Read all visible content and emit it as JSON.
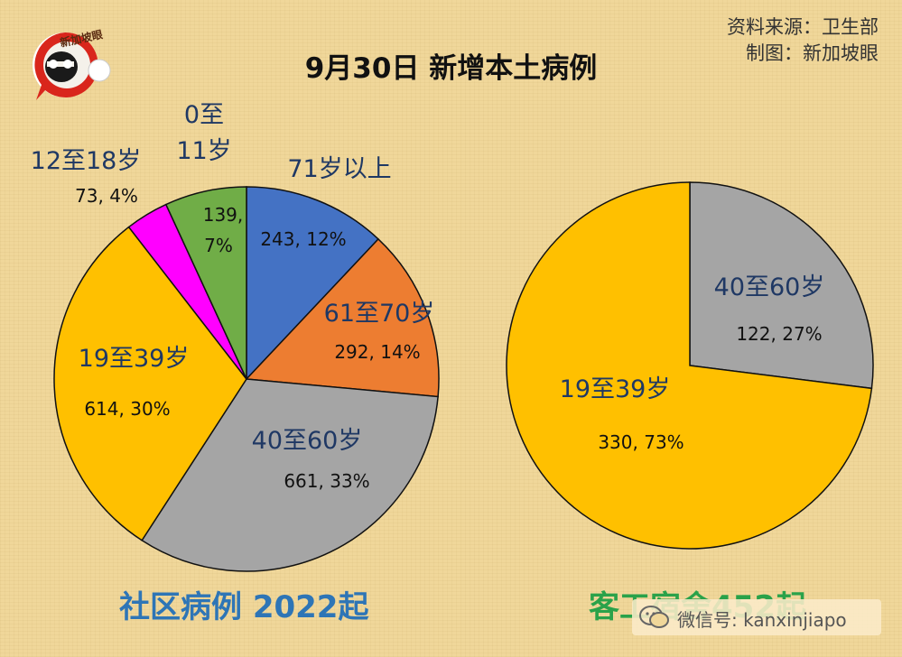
{
  "header": {
    "title": "9月30日 新增本土病例",
    "source_line1": "资料来源：卫生部",
    "source_line2": "制图：新加坡眼",
    "logo_text": "新加坡眼"
  },
  "footer": {
    "left_label": "社区病例 2022起",
    "right_label": "客工宿舍452起"
  },
  "watermark": {
    "text": "微信号: kanxinjiapo"
  },
  "colors": {
    "blue": "#4472c4",
    "orange": "#ed7d31",
    "gray": "#a5a5a5",
    "gold": "#ffc000",
    "magenta": "#ff00ff",
    "green": "#70ad47",
    "footer_left": "#2e75b6",
    "footer_right": "#2aa24a"
  },
  "chart_data": [
    {
      "type": "pie",
      "title": "社区病例 2022起",
      "slices": [
        {
          "category": "71岁以上",
          "value": 243,
          "percent": "12%",
          "label": "243, 12%",
          "color": "#4472c4"
        },
        {
          "category": "61至70岁",
          "value": 292,
          "percent": "14%",
          "label": "292, 14%",
          "color": "#ed7d31"
        },
        {
          "category": "40至60岁",
          "value": 661,
          "percent": "33%",
          "label": "661, 33%",
          "color": "#a5a5a5"
        },
        {
          "category": "19至39岁",
          "value": 614,
          "percent": "30%",
          "label": "614, 30%",
          "color": "#ffc000"
        },
        {
          "category": "12至18岁",
          "value": 73,
          "percent": "4%",
          "label": "73, 4%",
          "color": "#ff00ff"
        },
        {
          "category": "0至11岁",
          "value": 139,
          "percent": "7%",
          "label": "139, 7%",
          "color": "#70ad47"
        }
      ]
    },
    {
      "type": "pie",
      "title": "客工宿舍452起",
      "slices": [
        {
          "category": "40至60岁",
          "value": 122,
          "percent": "27%",
          "label": "122, 27%",
          "color": "#a5a5a5"
        },
        {
          "category": "19至39岁",
          "value": 330,
          "percent": "73%",
          "label": "330, 73%",
          "color": "#ffc000"
        }
      ]
    }
  ]
}
